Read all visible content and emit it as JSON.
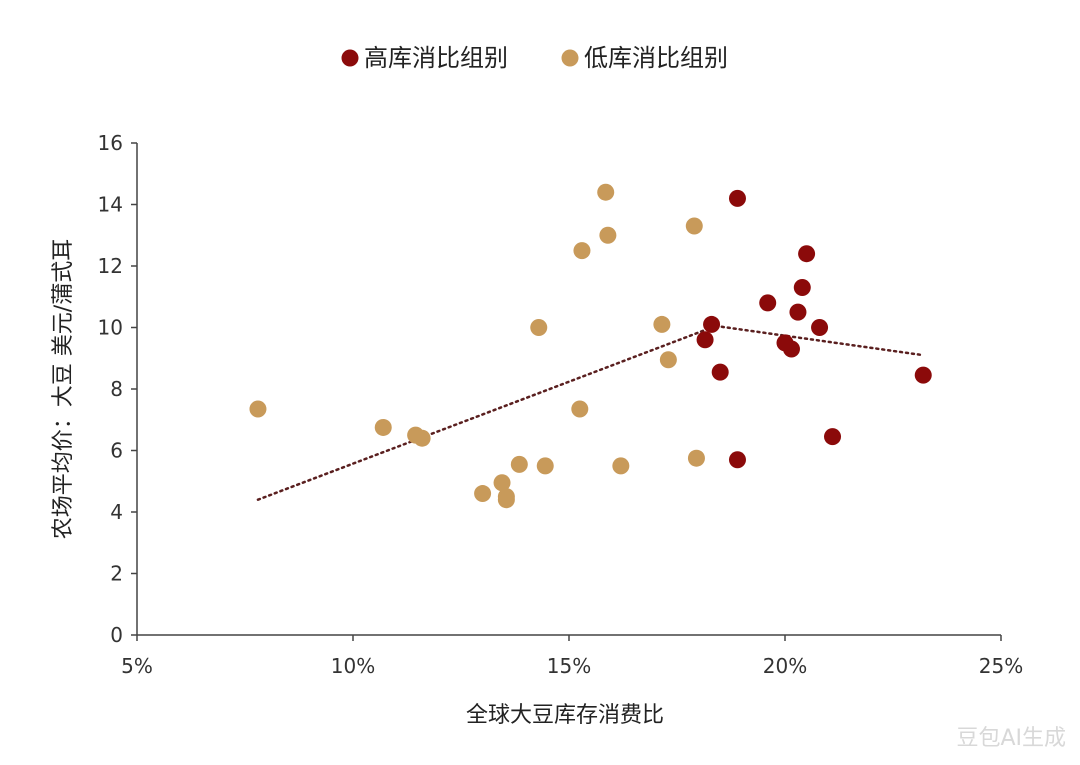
{
  "chart_data": {
    "type": "scatter",
    "title": "",
    "xlabel": "全球大豆库存消费比",
    "ylabel": "农场平均价：大豆 美元/蒲式耳",
    "xlim": [
      5,
      25
    ],
    "ylim": [
      0,
      16
    ],
    "x_ticks": [
      5,
      10,
      15,
      20,
      25
    ],
    "x_tick_labels": [
      "5%",
      "10%",
      "15%",
      "20%",
      "25%"
    ],
    "y_ticks": [
      0,
      2,
      4,
      6,
      8,
      10,
      12,
      14,
      16
    ],
    "y_tick_labels": [
      "0",
      "2",
      "4",
      "6",
      "8",
      "10",
      "12",
      "14",
      "16"
    ],
    "grid": false,
    "legend_position": "top-center",
    "series": [
      {
        "name": "高库消比组别",
        "color": "#8b0a0a",
        "points": [
          [
            18.9,
            14.2
          ],
          [
            20.5,
            12.4
          ],
          [
            20.4,
            11.3
          ],
          [
            19.6,
            10.8
          ],
          [
            20.3,
            10.5
          ],
          [
            18.3,
            10.1
          ],
          [
            20.8,
            10.0
          ],
          [
            18.15,
            9.6
          ],
          [
            20.0,
            9.5
          ],
          [
            20.15,
            9.3
          ],
          [
            18.5,
            8.55
          ],
          [
            23.2,
            8.45
          ],
          [
            21.1,
            6.45
          ],
          [
            18.9,
            5.7
          ]
        ]
      },
      {
        "name": "低库消比组别",
        "color": "#c89a5a",
        "points": [
          [
            15.85,
            14.4
          ],
          [
            17.9,
            13.3
          ],
          [
            15.9,
            13.0
          ],
          [
            15.3,
            12.5
          ],
          [
            14.3,
            10.0
          ],
          [
            17.15,
            10.1
          ],
          [
            17.3,
            8.95
          ],
          [
            7.8,
            7.35
          ],
          [
            15.25,
            7.35
          ],
          [
            10.7,
            6.75
          ],
          [
            11.45,
            6.5
          ],
          [
            11.6,
            6.4
          ],
          [
            13.85,
            5.55
          ],
          [
            14.45,
            5.5
          ],
          [
            16.2,
            5.5
          ],
          [
            17.95,
            5.75
          ],
          [
            13.45,
            4.95
          ],
          [
            13.0,
            4.6
          ],
          [
            13.55,
            4.5
          ],
          [
            13.55,
            4.4
          ]
        ]
      }
    ],
    "trendlines": [
      {
        "color": "#5a1f1f",
        "from": [
          7.8,
          4.4
        ],
        "to": [
          18.4,
          10.05
        ]
      },
      {
        "color": "#5a1f1f",
        "from": [
          18.4,
          10.05
        ],
        "to": [
          23.2,
          9.1
        ]
      }
    ]
  },
  "watermark": "豆包AI生成"
}
